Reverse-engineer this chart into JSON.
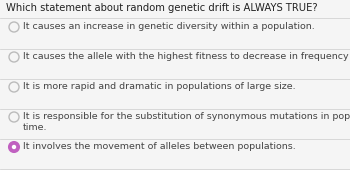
{
  "title": "Which statement about random genetic drift is ALWAYS TRUE?",
  "options": [
    "It causes an increase in genetic diversity within a population.",
    "It causes the allele with the highest fitness to decrease in frequency over time.",
    "It is more rapid and dramatic in populations of large size.",
    "It is responsible for the substitution of synonymous mutations in populations over\ntime.",
    "It involves the movement of alleles between populations."
  ],
  "selected_index": 4,
  "bg_color": "#f5f5f5",
  "title_color": "#222222",
  "option_color": "#444444",
  "radio_empty_edge": "#bbbbbb",
  "radio_selected_edge": "#c060c0",
  "radio_selected_face": "#c060c0",
  "divider_color": "#cccccc",
  "title_fontsize": 7.2,
  "option_fontsize": 6.8,
  "title_fontweight": "normal"
}
